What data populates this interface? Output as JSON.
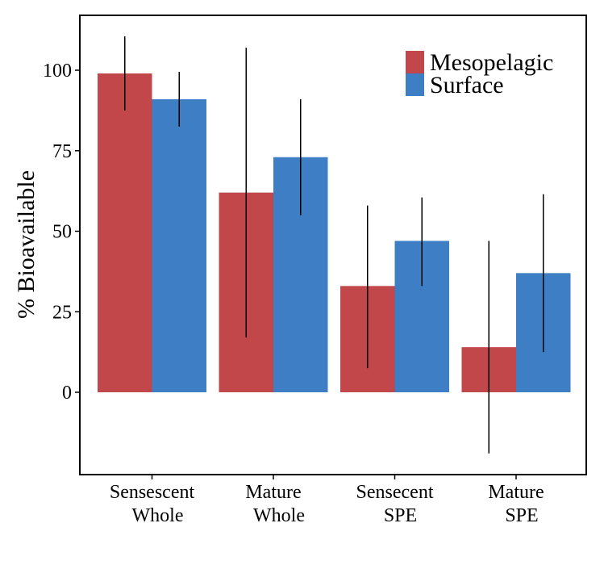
{
  "chart_data": {
    "type": "bar",
    "title": "",
    "xlabel": "",
    "ylabel": "% Bioavailable",
    "ylim": [
      -25,
      117
    ],
    "yticks": [
      0,
      25,
      50,
      75,
      100
    ],
    "grid": false,
    "legend_position": "top-right",
    "categories": [
      {
        "id": "sensescent-whole",
        "lines": [
          "Sensescent",
          "Whole"
        ]
      },
      {
        "id": "mature-whole",
        "lines": [
          "Mature",
          "Whole"
        ]
      },
      {
        "id": "sensecent-spe",
        "lines": [
          "Sensecent",
          "SPE"
        ]
      },
      {
        "id": "mature-spe",
        "lines": [
          "Mature",
          "SPE"
        ]
      }
    ],
    "series": [
      {
        "name": "Mesopelagic",
        "color": "#c1474a",
        "values": [
          99,
          62,
          33,
          14
        ],
        "err_low": [
          87.5,
          17,
          7.5,
          -19
        ],
        "err_high": [
          110.5,
          107,
          58,
          47
        ]
      },
      {
        "name": "Surface",
        "color": "#3d7ec4",
        "values": [
          91,
          73,
          47,
          37
        ],
        "err_low": [
          82.5,
          55,
          33,
          12.5
        ],
        "err_high": [
          99.5,
          91,
          60.5,
          61.5
        ]
      }
    ]
  }
}
